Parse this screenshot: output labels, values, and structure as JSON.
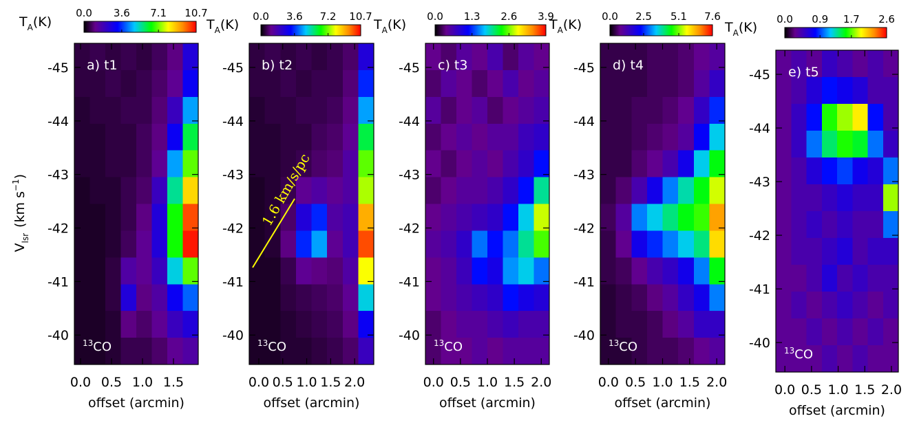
{
  "chart_data": [
    {
      "type": "heatmap",
      "title": "a) t1",
      "annotation_sup": "13",
      "annotation": "CO",
      "ylabel": [
        "V",
        "lsr",
        "(km s",
        "−1",
        ")"
      ],
      "xlabel": "offset (arcmin)",
      "colorbar_label": [
        "T",
        "A",
        "(K)"
      ],
      "xlim": [
        -0.1,
        1.9
      ],
      "ylim": [
        -39.45,
        -45.45
      ],
      "clim": [
        0,
        10.7
      ],
      "xticks": [
        {
          "value": 0,
          "label": "0.0"
        },
        0.5,
        {
          "value": 1,
          "label": "1.0"
        },
        1.5
      ],
      "yticks": [
        -45,
        -44,
        -43,
        -42,
        -41,
        -40
      ],
      "cticks": [
        {
          "value": 0,
          "label": "0.0"
        },
        3.6,
        7.1,
        10.7
      ],
      "z": [
        [
          0.5,
          0.6,
          0.5,
          0.6,
          0.5,
          0.7,
          1.0,
          2.5
        ],
        [
          0.5,
          0.5,
          0.6,
          0.5,
          0.6,
          0.8,
          1.2,
          3.0
        ],
        [
          0.4,
          0.5,
          0.5,
          0.6,
          0.6,
          0.9,
          2.0,
          4.5
        ],
        [
          0.4,
          0.4,
          0.5,
          0.5,
          0.7,
          1.0,
          3.0,
          6.0
        ],
        [
          0.4,
          0.4,
          0.5,
          0.5,
          0.7,
          1.2,
          4.5,
          7.0
        ],
        [
          0.3,
          0.4,
          0.4,
          0.6,
          0.8,
          2.0,
          5.5,
          8.5
        ],
        [
          0.3,
          0.3,
          0.4,
          0.6,
          1.0,
          2.5,
          6.5,
          10.0
        ],
        [
          0.3,
          0.3,
          0.4,
          0.7,
          1.2,
          2.5,
          6.5,
          10.5
        ],
        [
          0.3,
          0.3,
          0.5,
          1.5,
          1.2,
          2.0,
          5.0,
          7.0
        ],
        [
          0.3,
          0.3,
          0.5,
          2.5,
          1.0,
          1.5,
          3.0,
          4.0
        ],
        [
          0.3,
          0.3,
          0.4,
          1.0,
          0.8,
          1.2,
          2.0,
          2.5
        ],
        [
          0.3,
          0.3,
          0.4,
          0.6,
          0.6,
          0.8,
          1.2,
          1.5
        ]
      ]
    },
    {
      "type": "heatmap",
      "title": "b) t2",
      "annotation_sup": "13",
      "annotation": "CO",
      "line_annotation": "1.6 km/s/pc",
      "xlabel": "offset (arcmin)",
      "colorbar_label": [
        "T",
        "A",
        "(K)"
      ],
      "xlim": [
        -0.2,
        2.4
      ],
      "ylim": [
        -39.45,
        -45.45
      ],
      "clim": [
        0,
        10.7
      ],
      "xticks": [
        {
          "value": 0,
          "label": "0.0"
        },
        0.5,
        {
          "value": 1,
          "label": "1.0"
        },
        1.5,
        {
          "value": 2,
          "label": "2.0"
        }
      ],
      "yticks": [
        -45,
        -44,
        -43,
        -42,
        -41,
        -40
      ],
      "cticks": [
        {
          "value": 0,
          "label": "0.0"
        },
        3.6,
        7.2,
        10.7
      ],
      "z": [
        [
          0.5,
          0.6,
          0.5,
          0.6,
          0.5,
          0.6,
          0.8,
          2.5
        ],
        [
          0.5,
          0.5,
          0.6,
          0.5,
          0.6,
          0.6,
          0.9,
          3.5
        ],
        [
          0.4,
          0.5,
          0.5,
          0.6,
          0.6,
          0.7,
          1.0,
          4.5
        ],
        [
          0.4,
          0.4,
          0.5,
          0.5,
          0.7,
          0.8,
          1.2,
          6.0
        ],
        [
          0.4,
          0.4,
          0.5,
          0.6,
          0.8,
          0.9,
          1.5,
          7.0
        ],
        [
          0.3,
          0.4,
          0.6,
          1.2,
          1.5,
          1.2,
          1.5,
          7.5
        ],
        [
          0.3,
          0.4,
          0.8,
          2.5,
          3.5,
          1.5,
          1.8,
          9.0
        ],
        [
          0.3,
          0.4,
          1.0,
          3.5,
          4.5,
          1.2,
          1.8,
          10.0
        ],
        [
          0.3,
          0.3,
          0.6,
          1.2,
          1.0,
          0.9,
          1.5,
          8.0
        ],
        [
          0.3,
          0.3,
          0.5,
          0.6,
          0.7,
          0.8,
          1.2,
          5.0
        ],
        [
          0.3,
          0.3,
          0.4,
          0.5,
          0.6,
          0.7,
          1.0,
          3.0
        ],
        [
          0.3,
          0.3,
          0.4,
          0.4,
          0.5,
          0.6,
          0.8,
          2.0
        ]
      ]
    },
    {
      "type": "heatmap",
      "title": "c) t3",
      "annotation_sup": "13",
      "annotation": "CO",
      "xlabel": "offset (arcmin)",
      "colorbar_label": [
        "T",
        "A",
        "(K)"
      ],
      "xlim": [
        -0.15,
        2.15
      ],
      "ylim": [
        -39.45,
        -45.45
      ],
      "clim": [
        0,
        3.9
      ],
      "xticks": [
        {
          "value": 0,
          "label": "0.0"
        },
        0.5,
        {
          "value": 1,
          "label": "1.0"
        },
        1.5,
        {
          "value": 2,
          "label": "2.0"
        }
      ],
      "yticks": [
        -45,
        -44,
        -43,
        -42,
        -41,
        -40
      ],
      "cticks": [
        {
          "value": 0,
          "label": "0.0"
        },
        1.3,
        2.6,
        3.9
      ],
      "z": [
        [
          0.4,
          0.3,
          0.5,
          0.4,
          0.6,
          0.3,
          0.5,
          0.4
        ],
        [
          0.3,
          0.5,
          0.4,
          0.3,
          0.4,
          0.6,
          0.4,
          0.5
        ],
        [
          0.5,
          0.3,
          0.4,
          0.5,
          0.3,
          0.4,
          0.5,
          0.6
        ],
        [
          0.3,
          0.4,
          0.5,
          0.4,
          0.5,
          0.5,
          0.7,
          0.8
        ],
        [
          0.4,
          0.3,
          0.4,
          0.5,
          0.4,
          0.6,
          0.8,
          1.2
        ],
        [
          0.3,
          0.4,
          0.5,
          0.5,
          0.6,
          0.8,
          1.2,
          2.0
        ],
        [
          0.4,
          0.5,
          0.6,
          0.7,
          0.8,
          1.2,
          1.8,
          2.8
        ],
        [
          0.5,
          0.6,
          0.8,
          1.5,
          1.2,
          1.5,
          2.0,
          2.5
        ],
        [
          0.4,
          0.5,
          0.7,
          1.2,
          1.0,
          1.6,
          1.8,
          1.5
        ],
        [
          0.4,
          0.5,
          0.6,
          0.7,
          0.8,
          1.2,
          1.0,
          0.9
        ],
        [
          0.3,
          0.4,
          0.5,
          0.5,
          0.6,
          0.7,
          0.6,
          0.6
        ],
        [
          0.3,
          0.4,
          0.4,
          0.5,
          0.4,
          0.5,
          0.5,
          0.5
        ]
      ]
    },
    {
      "type": "heatmap",
      "title": "d) t4",
      "annotation_sup": "13",
      "annotation": "CO",
      "xlabel": "offset (arcmin)",
      "colorbar_label": [
        "T",
        "A",
        "(K)"
      ],
      "xlim": [
        -0.15,
        2.15
      ],
      "ylim": [
        -39.45,
        -45.45
      ],
      "clim": [
        0,
        7.6
      ],
      "xticks": [
        {
          "value": 0,
          "label": "0.0"
        },
        0.5,
        {
          "value": 1,
          "label": "1.0"
        },
        1.5,
        {
          "value": 2,
          "label": "2.0"
        }
      ],
      "yticks": [
        -45,
        -44,
        -43,
        -42,
        -41,
        -40
      ],
      "cticks": [
        {
          "value": 0,
          "label": "0.0"
        },
        2.5,
        5.1,
        7.6
      ],
      "z": [
        [
          0.4,
          0.4,
          0.4,
          0.5,
          0.5,
          0.6,
          0.8,
          1.0
        ],
        [
          0.4,
          0.4,
          0.4,
          0.5,
          0.5,
          0.6,
          1.0,
          1.5
        ],
        [
          0.4,
          0.4,
          0.5,
          0.5,
          0.6,
          0.8,
          1.5,
          2.5
        ],
        [
          0.4,
          0.4,
          0.5,
          0.6,
          0.7,
          1.0,
          2.2,
          3.5
        ],
        [
          0.4,
          0.4,
          0.6,
          0.8,
          1.2,
          2.0,
          3.5,
          4.5
        ],
        [
          0.4,
          0.6,
          1.2,
          2.0,
          3.0,
          3.8,
          4.5,
          5.5
        ],
        [
          0.5,
          1.0,
          3.0,
          3.5,
          4.0,
          4.5,
          4.8,
          6.5
        ],
        [
          0.4,
          0.8,
          2.0,
          2.5,
          3.0,
          3.5,
          4.0,
          6.0
        ],
        [
          0.4,
          0.5,
          0.8,
          1.2,
          1.5,
          2.0,
          3.0,
          4.5
        ],
        [
          0.3,
          0.4,
          0.5,
          0.7,
          1.0,
          1.5,
          2.0,
          3.0
        ],
        [
          0.3,
          0.4,
          0.4,
          0.5,
          0.7,
          1.0,
          1.5,
          1.5
        ],
        [
          0.3,
          0.3,
          0.4,
          0.5,
          0.5,
          0.6,
          0.8,
          1.0
        ]
      ]
    },
    {
      "type": "heatmap",
      "title": "e) t5",
      "annotation_sup": "13",
      "annotation": "CO",
      "xlabel": "offset (arcmin)",
      "colorbar_label": [
        "T",
        "A",
        "(K)"
      ],
      "xlim": [
        -0.17,
        2.13
      ],
      "ylim": [
        -39.45,
        -45.45
      ],
      "clim": [
        0,
        2.6
      ],
      "xticks": [
        {
          "value": 0,
          "label": "0.0"
        },
        0.5,
        {
          "value": 1,
          "label": "1.0"
        },
        1.5,
        {
          "value": 2,
          "label": "2.0"
        }
      ],
      "yticks": [
        -45,
        -44,
        -43,
        -42,
        -41,
        -40
      ],
      "cticks": [
        {
          "value": 0,
          "label": "0.0"
        },
        0.9,
        1.7,
        2.6
      ],
      "z": [
        [
          0.3,
          0.4,
          0.3,
          0.5,
          0.4,
          0.3,
          0.4,
          0.3
        ],
        [
          0.3,
          0.4,
          0.6,
          0.8,
          0.7,
          0.6,
          0.4,
          0.4
        ],
        [
          0.3,
          0.5,
          0.8,
          1.6,
          1.8,
          2.0,
          0.8,
          0.4
        ],
        [
          0.3,
          0.5,
          1.0,
          1.4,
          1.6,
          1.5,
          1.0,
          0.5
        ],
        [
          0.3,
          0.4,
          0.6,
          0.8,
          0.9,
          0.7,
          0.6,
          1.0
        ],
        [
          0.3,
          0.4,
          0.4,
          0.5,
          0.6,
          0.5,
          0.5,
          1.8
        ],
        [
          0.3,
          0.4,
          0.5,
          0.4,
          0.5,
          0.4,
          0.4,
          1.0
        ],
        [
          0.3,
          0.4,
          0.4,
          0.5,
          0.6,
          0.4,
          0.5,
          0.5
        ],
        [
          0.3,
          0.3,
          0.4,
          0.6,
          0.4,
          0.5,
          0.4,
          0.4
        ],
        [
          0.3,
          0.4,
          0.3,
          0.4,
          0.5,
          0.4,
          0.3,
          0.4
        ],
        [
          0.3,
          0.3,
          0.4,
          0.3,
          0.4,
          0.3,
          0.4,
          0.3
        ],
        [
          0.3,
          0.3,
          0.3,
          0.4,
          0.3,
          0.4,
          0.3,
          0.3
        ]
      ]
    }
  ]
}
